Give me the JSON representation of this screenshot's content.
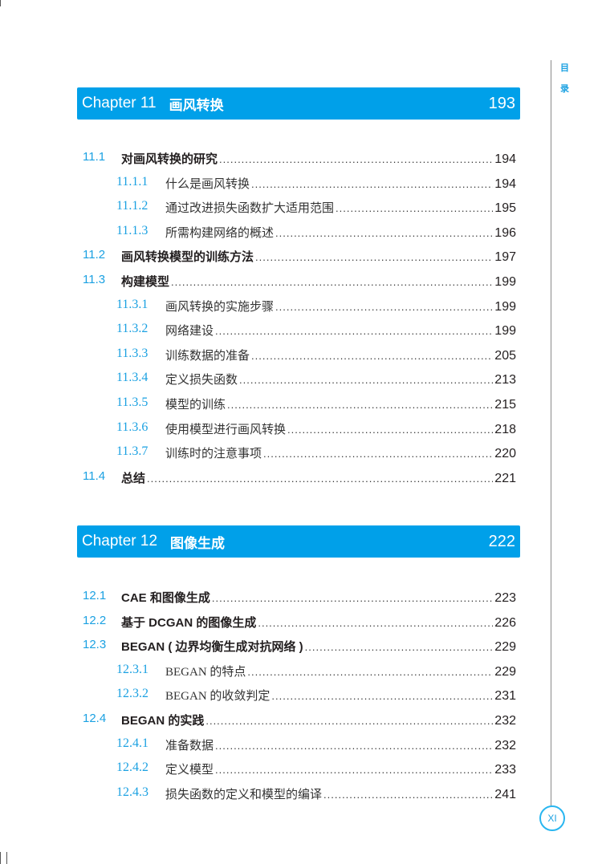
{
  "side_tab": [
    "目",
    "录"
  ],
  "page_number": "XI",
  "accent_color": "#00a0e9",
  "chapters": [
    {
      "label": "Chapter 11",
      "title": "画风转换",
      "page": "193",
      "entries": [
        {
          "level": 1,
          "num": "11.1",
          "title": "对画风转换的研究",
          "page": "194"
        },
        {
          "level": 2,
          "num": "11.1.1",
          "title": "什么是画风转换",
          "page": "194"
        },
        {
          "level": 2,
          "num": "11.1.2",
          "title": "通过改进损失函数扩大适用范围",
          "page": "195"
        },
        {
          "level": 2,
          "num": "11.1.3",
          "title": "所需构建网络的概述",
          "page": "196"
        },
        {
          "level": 1,
          "num": "11.2",
          "title": "画风转换模型的训练方法",
          "page": "197"
        },
        {
          "level": 1,
          "num": "11.3",
          "title": "构建模型",
          "page": "199"
        },
        {
          "level": 2,
          "num": "11.3.1",
          "title": "画风转换的实施步骤",
          "page": "199"
        },
        {
          "level": 2,
          "num": "11.3.2",
          "title": "网络建设",
          "page": "199"
        },
        {
          "level": 2,
          "num": "11.3.3",
          "title": "训练数据的准备",
          "page": "205"
        },
        {
          "level": 2,
          "num": "11.3.4",
          "title": "定义损失函数",
          "page": "213"
        },
        {
          "level": 2,
          "num": "11.3.5",
          "title": "模型的训练",
          "page": "215"
        },
        {
          "level": 2,
          "num": "11.3.6",
          "title": "使用模型进行画风转换",
          "page": "218"
        },
        {
          "level": 2,
          "num": "11.3.7",
          "title": "训练时的注意事项",
          "page": "220"
        },
        {
          "level": 1,
          "num": "11.4",
          "title": "总结",
          "page": "221"
        }
      ]
    },
    {
      "label": "Chapter 12",
      "title": "图像生成",
      "page": "222",
      "entries": [
        {
          "level": 1,
          "num": "12.1",
          "title": "CAE 和图像生成",
          "page": "223"
        },
        {
          "level": 1,
          "num": "12.2",
          "title": "基于 DCGAN 的图像生成",
          "page": "226"
        },
        {
          "level": 1,
          "num": "12.3",
          "title": "BEGAN ( 边界均衡生成对抗网络 )",
          "page": "229"
        },
        {
          "level": 2,
          "num": "12.3.1",
          "title": "BEGAN 的特点",
          "page": "229"
        },
        {
          "level": 2,
          "num": "12.3.2",
          "title": "BEGAN 的收敛判定",
          "page": "231"
        },
        {
          "level": 1,
          "num": "12.4",
          "title": "BEGAN 的实践",
          "page": "232"
        },
        {
          "level": 2,
          "num": "12.4.1",
          "title": "准备数据",
          "page": "232"
        },
        {
          "level": 2,
          "num": "12.4.2",
          "title": "定义模型",
          "page": "233"
        },
        {
          "level": 2,
          "num": "12.4.3",
          "title": "损失函数的定义和模型的编译",
          "page": "241"
        }
      ]
    }
  ]
}
